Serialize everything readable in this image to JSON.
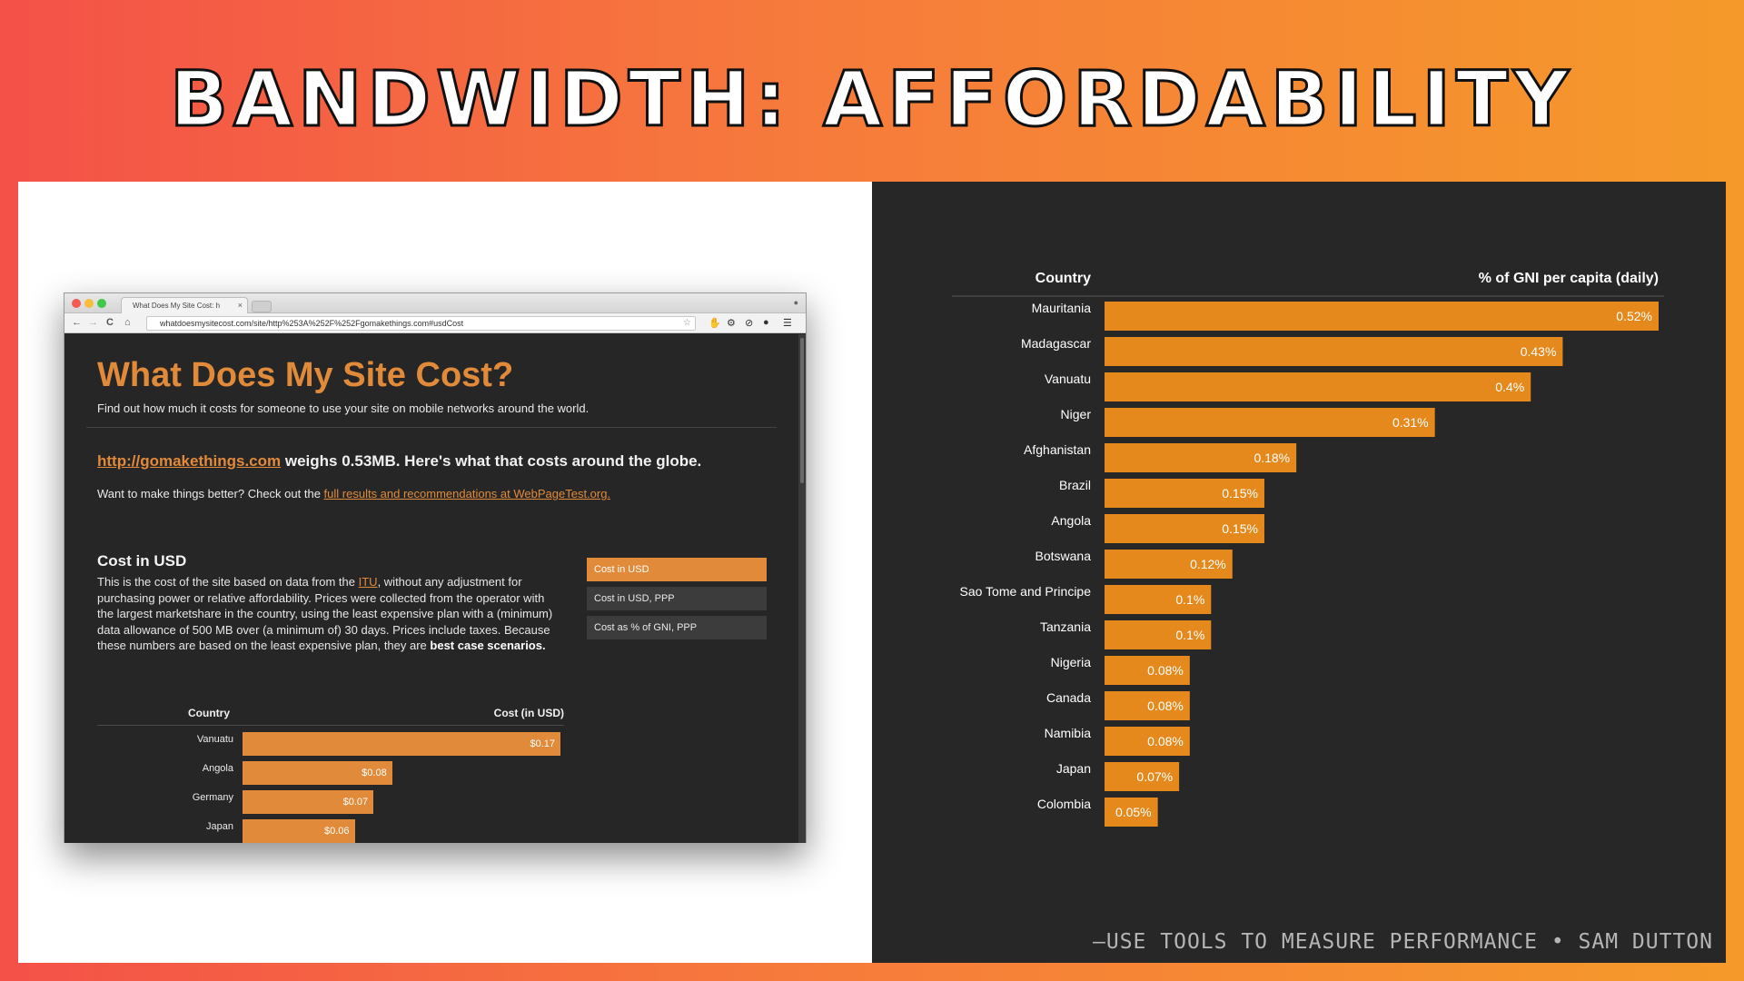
{
  "slide": {
    "title": "BANDWIDTH: AFFORDABILITY",
    "quote": "—USE TOOLS TO MEASURE PERFORMANCE • SAM DUTTON"
  },
  "browser": {
    "tab_title": "What Does My Site Cost: h",
    "tab_close": "×",
    "url": "whatdoesmysitecost.com/site/http%253A%252F%252Fgomakethings.com#usdCost",
    "nav": {
      "back": "←",
      "forward": "→",
      "reload": "C",
      "home": "⌂"
    }
  },
  "site": {
    "title": "What Does My Site Cost?",
    "subtitle": "Find out how much it costs for someone to use your site on mobile networks around the world.",
    "headline_link": "http://gomakethings.com",
    "headline_rest": " weighs 0.53MB. Here's what that costs around the globe.",
    "better_text": "Want to make things better? Check out the ",
    "better_link": "full results and recommendations at WebPageTest.org.",
    "cost_heading": "Cost in USD",
    "desc_a": "This is the cost of the site based on data from the ",
    "desc_link": "ITU",
    "desc_b": ", without any adjustment for purchasing power or relative affordability. Prices were collected from the operator with the largest marketshare in the country, using the least expensive plan with a (minimum) data allowance of 500 MB over (a minimum of) 30 days. Prices include taxes. Because these numbers are based on the least expensive plan, they are ",
    "desc_strong": "best case scenarios.",
    "menu": [
      "Cost in USD",
      "Cost in USD, PPP",
      "Cost as % of GNI, PPP"
    ],
    "mini_chart": {
      "col_country": "Country",
      "col_value": "Cost (in USD)",
      "rows": [
        {
          "country": "Vanuatu",
          "value": 0.17,
          "label": "$0.17"
        },
        {
          "country": "Angola",
          "value": 0.08,
          "label": "$0.08"
        },
        {
          "country": "Germany",
          "value": 0.07,
          "label": "$0.07"
        },
        {
          "country": "Japan",
          "value": 0.06,
          "label": "$0.06"
        }
      ]
    }
  },
  "chart_data": {
    "type": "bar",
    "orientation": "horizontal",
    "xlabel": "Country",
    "ylabel": "% of GNI per capita (daily)",
    "categories": [
      "Mauritania",
      "Madagascar",
      "Vanuatu",
      "Niger",
      "Afghanistan",
      "Brazil",
      "Angola",
      "Botswana",
      "Sao Tome and Principe",
      "Tanzania",
      "Nigeria",
      "Canada",
      "Namibia",
      "Japan",
      "Colombia"
    ],
    "values": [
      0.52,
      0.43,
      0.4,
      0.31,
      0.18,
      0.15,
      0.15,
      0.12,
      0.1,
      0.1,
      0.08,
      0.08,
      0.08,
      0.07,
      0.05
    ],
    "value_labels": [
      "0.52%",
      "0.43%",
      "0.4%",
      "0.31%",
      "0.18%",
      "0.15%",
      "0.15%",
      "0.12%",
      "0.1%",
      "0.1%",
      "0.08%",
      "0.08%",
      "0.08%",
      "0.07%",
      "0.05%"
    ],
    "xlim": [
      0,
      0.52
    ],
    "colors": {
      "bar": "#e5891c",
      "background": "#272727",
      "text": "#ffffff"
    }
  }
}
